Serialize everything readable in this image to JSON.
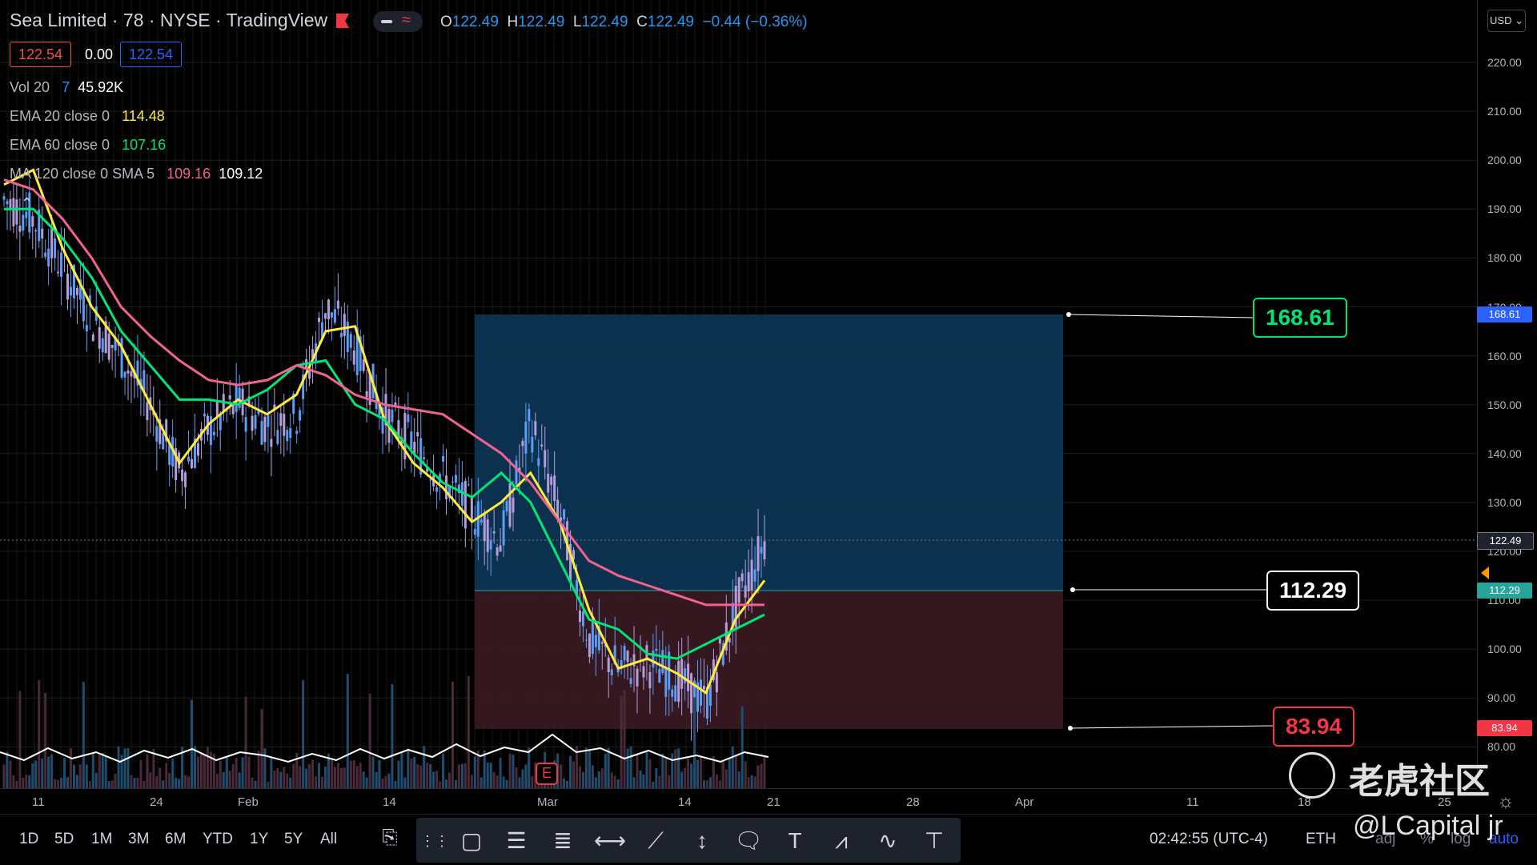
{
  "header": {
    "title": "Sea Limited · 78 · NYSE · TradingView",
    "ohlc": {
      "o_label": "O",
      "o": "122.49",
      "h_label": "H",
      "h": "122.49",
      "l_label": "L",
      "l": "122.49",
      "c_label": "C",
      "c": "122.49",
      "change": "−0.44 (−0.36%)"
    },
    "bid": "122.54",
    "spread": "0.00",
    "ask": "122.54",
    "currency": "USD"
  },
  "indicators": [
    {
      "label": "Vol 20",
      "v1": "7",
      "v2": "45.92K",
      "color": "#2196f3"
    },
    {
      "label": "EMA 20 close 0",
      "v1": "114.48",
      "color": "#ffeb3b"
    },
    {
      "label": "EMA 60 close 0",
      "v1": "107.16",
      "color": "#00e676"
    },
    {
      "label": "MA 120 close 0 SMA 5",
      "v1": "109.16",
      "v2": "109.12",
      "color": "#f06292"
    }
  ],
  "price_axis": {
    "ticks": [
      "220.00",
      "210.00",
      "200.00",
      "190.00",
      "180.00",
      "170.00",
      "160.00",
      "150.00",
      "140.00",
      "130.00",
      "120.00",
      "110.00",
      "100.00",
      "90.00",
      "80.00"
    ],
    "last_price": "122.49",
    "target": "168.61",
    "entry": "112.29",
    "stop": "83.94"
  },
  "time_axis": {
    "ticks": [
      "11",
      "24",
      "Feb",
      "14",
      "Mar",
      "14",
      "21",
      "28",
      "Apr",
      "11",
      "18",
      "25"
    ]
  },
  "callouts": {
    "target": "168.61",
    "entry": "112.29",
    "stop": "83.94"
  },
  "earnings_marker": "E",
  "ranges": [
    "1D",
    "5D",
    "1M",
    "3M",
    "6M",
    "YTD",
    "1Y",
    "5Y",
    "All"
  ],
  "status": {
    "time": "02:42:55 (UTC-4)",
    "session": "ETH",
    "adj": "adj",
    "pct": "%",
    "log": "log",
    "auto": "auto"
  },
  "watermark": {
    "site": "老虎社区",
    "user": "@LCapital jr"
  },
  "colors": {
    "up": "#5b9cf6",
    "down": "#ef5350",
    "ema20": "#ffeb3b",
    "ema60": "#00e676",
    "ma120": "#f06292",
    "target_zone": "#0d3a5c",
    "stop_zone": "#3b1a22",
    "target_label": "#2962ff",
    "entry_label": "#26a69a",
    "stop_label": "#f23645"
  },
  "chart_data": {
    "type": "line",
    "y_range": [
      75,
      225
    ],
    "series": [
      {
        "name": "EMA 20 close 0",
        "values": [
          195,
          198,
          182,
          170,
          162,
          150,
          138,
          146,
          151,
          148,
          152,
          165,
          166,
          147,
          138,
          133,
          126,
          130,
          136,
          126,
          108,
          96,
          98,
          95,
          91,
          106,
          114
        ]
      },
      {
        "name": "EMA 60 close 0",
        "values": [
          190,
          190,
          184,
          176,
          165,
          158,
          151,
          151,
          150,
          153,
          158,
          159,
          150,
          147,
          140,
          134,
          131,
          136,
          130,
          118,
          106,
          104,
          99,
          98,
          101,
          104,
          107
        ]
      },
      {
        "name": "MA 120 close 0 SMA 5",
        "values": [
          196,
          194,
          188,
          180,
          170,
          164,
          159,
          155,
          154,
          155,
          158,
          156,
          152,
          150,
          149,
          148,
          144,
          140,
          134,
          126,
          118,
          115,
          113,
          111,
          109,
          109,
          109
        ]
      }
    ],
    "price": [
      192,
      188,
      178,
      168,
      160,
      150,
      136,
      145,
      150,
      146,
      148,
      170,
      162,
      148,
      142,
      135,
      128,
      122,
      146,
      128,
      102,
      96,
      97,
      94,
      89,
      108,
      122
    ]
  }
}
